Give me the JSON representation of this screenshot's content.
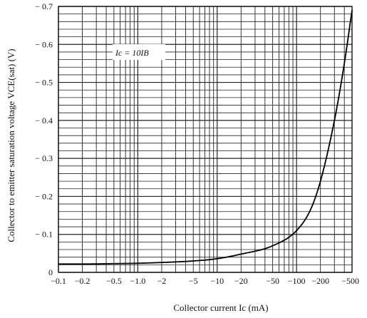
{
  "chart_data": {
    "type": "line",
    "title": "",
    "xlabel": "Collector current  Ic  (mA)",
    "ylabel": "Collector to emitter saturation voltage   VCE(sat)   (V)",
    "x_scale": "log",
    "xlim": [
      0.1,
      500
    ],
    "ylim": [
      0,
      -0.7
    ],
    "x_ticks": [
      {
        "value": 0.1,
        "label": "−0.1"
      },
      {
        "value": 0.2,
        "label": "−0.2"
      },
      {
        "value": 0.5,
        "label": "−0.5"
      },
      {
        "value": 1,
        "label": "−1.0"
      },
      {
        "value": 2,
        "label": "−2"
      },
      {
        "value": 5,
        "label": "−5"
      },
      {
        "value": 10,
        "label": "−10"
      },
      {
        "value": 20,
        "label": "−20"
      },
      {
        "value": 50,
        "label": "−50"
      },
      {
        "value": 100,
        "label": "−100"
      },
      {
        "value": 200,
        "label": "−200"
      },
      {
        "value": 500,
        "label": "−500"
      }
    ],
    "y_ticks": [
      {
        "value": 0,
        "label": "0"
      },
      {
        "value": -0.1,
        "label": "− 0.1"
      },
      {
        "value": -0.2,
        "label": "− 0.2"
      },
      {
        "value": -0.3,
        "label": "− 0.3"
      },
      {
        "value": -0.4,
        "label": "− 0.4"
      },
      {
        "value": -0.5,
        "label": "− 0.5"
      },
      {
        "value": -0.6,
        "label": "− 0.6"
      },
      {
        "value": -0.7,
        "label": "− 0.7"
      }
    ],
    "grid": true,
    "annotation": "Ic = 10IB",
    "series": [
      {
        "x": [
          0.1,
          0.2,
          0.5,
          1,
          2,
          5,
          10,
          20,
          50,
          100,
          150,
          200,
          300,
          400,
          500
        ],
        "y": [
          -0.022,
          -0.022,
          -0.023,
          -0.024,
          -0.026,
          -0.03,
          -0.036,
          -0.048,
          -0.07,
          -0.11,
          -0.165,
          -0.24,
          -0.4,
          -0.55,
          -0.69
        ]
      }
    ]
  }
}
